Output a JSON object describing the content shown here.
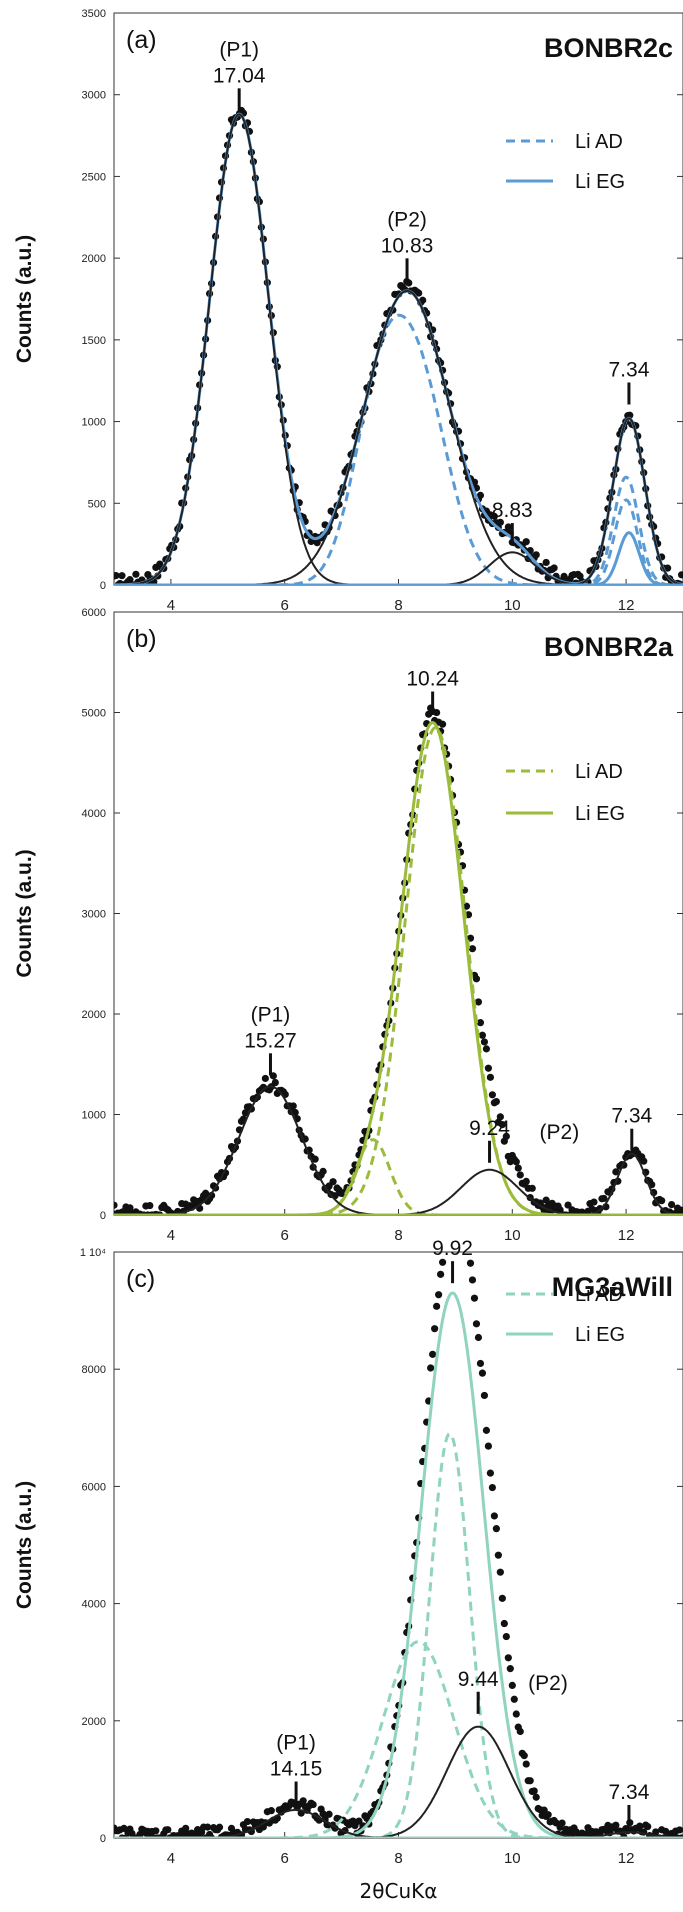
{
  "chart_data": [
    {
      "type": "scatter",
      "panel": "(a)",
      "sample": "BONBR2c",
      "ylabel": "Counts (a.u.)",
      "xlabel": "",
      "xlim": [
        3,
        13
      ],
      "xticks": [
        4,
        6,
        8,
        10,
        12
      ],
      "xtick_labels": [
        "4",
        "6",
        "8",
        "10",
        "12"
      ],
      "ylim": [
        0,
        3500
      ],
      "yticks": [
        0,
        500,
        1000,
        1500,
        2000,
        2500,
        3000,
        3500
      ],
      "ytick_labels": [
        "0",
        "500",
        "1000",
        "1500",
        "2000",
        "2500",
        "3000",
        "3500"
      ],
      "color": "#5b9bd5",
      "legend": {
        "position": "top-right",
        "entries": [
          {
            "label": "Li AD",
            "style": "dashed"
          },
          {
            "label": "Li EG",
            "style": "solid"
          }
        ]
      },
      "peaks": [
        {
          "x": 5.2,
          "y": 2880,
          "text": [
            "(P1)",
            "17.04"
          ]
        },
        {
          "x": 8.15,
          "y": 1840,
          "text": [
            "(P2)",
            "10.83"
          ]
        },
        {
          "x": 10.0,
          "y": 220,
          "text": [
            "8.83"
          ]
        },
        {
          "x": 12.05,
          "y": 1080,
          "text": [
            "7.34"
          ]
        }
      ],
      "series": [
        {
          "style": "dots",
          "peaks": [
            [
              5.2,
              2880,
              0.52
            ],
            [
              8.15,
              1800,
              0.75
            ],
            [
              10.0,
              200,
              0.4
            ],
            [
              12.05,
              1020,
              0.28
            ]
          ]
        },
        {
          "style": "solid",
          "peaks": [
            [
              5.2,
              2880,
              0.52
            ],
            [
              8.15,
              1800,
              0.75
            ],
            [
              10.0,
              200,
              0.4
            ],
            [
              12.05,
              1020,
              0.28
            ]
          ]
        },
        {
          "style": "dashed",
          "peaks": [
            [
              7.6,
              800,
              0.45
            ],
            [
              8.3,
              1290,
              0.55
            ]
          ]
        },
        {
          "style": "dashed",
          "peaks": [
            [
              12.0,
              660,
              0.22
            ]
          ]
        },
        {
          "style": "dashed",
          "peaks": [
            [
              12.0,
              520,
              0.2
            ]
          ]
        },
        {
          "style": "solid",
          "peaks": [
            [
              12.05,
              320,
              0.18
            ]
          ]
        },
        {
          "style": "dark",
          "peaks": [
            [
              5.2,
              2880,
              0.52
            ]
          ]
        },
        {
          "style": "dark",
          "peaks": [
            [
              8.15,
              1800,
              0.75
            ]
          ]
        },
        {
          "style": "dark",
          "peaks": [
            [
              10.0,
              200,
              0.4
            ]
          ]
        },
        {
          "style": "dark",
          "peaks": [
            [
              12.05,
              1020,
              0.28
            ]
          ]
        }
      ]
    },
    {
      "type": "scatter",
      "panel": "(b)",
      "sample": "BONBR2a",
      "ylabel": "Counts (a.u.)",
      "xlabel": "",
      "xlim": [
        3,
        13
      ],
      "xticks": [
        4,
        6,
        8,
        10,
        12
      ],
      "xtick_labels": [
        "4",
        "6",
        "8",
        "10",
        "12"
      ],
      "ylim": [
        0,
        6000
      ],
      "yticks": [
        0,
        1000,
        2000,
        3000,
        4000,
        5000,
        6000
      ],
      "ytick_labels": [
        "0",
        "1000",
        "2000",
        "3000",
        "4000",
        "5000",
        "6000"
      ],
      "color": "#9bbb3b",
      "legend": {
        "position": "top-right",
        "entries": [
          {
            "label": "Li AD",
            "style": "dashed"
          },
          {
            "label": "Li EG",
            "style": "solid"
          }
        ]
      },
      "peaks": [
        {
          "x": 5.75,
          "y": 1350,
          "text": [
            "(P1)",
            "15.27"
          ]
        },
        {
          "x": 8.6,
          "y": 4950,
          "text": [
            "10.24"
          ]
        },
        {
          "x": 9.6,
          "y": 480,
          "text": [
            "9.24"
          ]
        },
        {
          "x": 9.6,
          "y": 480,
          "text": [
            "(P2)"
          ]
        },
        {
          "x": 12.1,
          "y": 600,
          "text": [
            "7.34"
          ]
        }
      ],
      "series": [
        {
          "style": "dots",
          "peaks": [
            [
              5.75,
              1280,
              0.55
            ],
            [
              8.6,
              4900,
              0.55
            ],
            [
              7.5,
              250,
              0.3
            ],
            [
              9.6,
              450,
              0.5
            ],
            [
              12.1,
              610,
              0.25
            ]
          ]
        },
        {
          "style": "solid",
          "peaks": [
            [
              8.6,
              4900,
              0.55
            ],
            [
              7.5,
              250,
              0.3
            ]
          ]
        },
        {
          "style": "dashed",
          "peaks": [
            [
              8.65,
              4850,
              0.53
            ]
          ]
        },
        {
          "style": "dashed",
          "peaks": [
            [
              7.55,
              750,
              0.3
            ]
          ]
        },
        {
          "style": "dark",
          "peaks": [
            [
              5.75,
              1280,
              0.55
            ]
          ]
        },
        {
          "style": "dark",
          "peaks": [
            [
              9.6,
              450,
              0.5
            ]
          ]
        },
        {
          "style": "dark",
          "peaks": [
            [
              12.1,
              610,
              0.25
            ]
          ]
        }
      ]
    },
    {
      "type": "scatter",
      "panel": "(c)",
      "sample": "MG3aWill",
      "ylabel": "Counts (a.u.)",
      "xlabel": "2θCuKα",
      "xlim": [
        3,
        13
      ],
      "xticks": [
        4,
        6,
        8,
        10,
        12
      ],
      "xtick_labels": [
        "4",
        "6",
        "8",
        "10",
        "12"
      ],
      "ylim": [
        0,
        10000
      ],
      "yticks": [
        0,
        2000,
        4000,
        6000,
        8000,
        10000
      ],
      "ytick_labels": [
        "0",
        "2000",
        "4000",
        "6000",
        "8000",
        "1 10⁴"
      ],
      "color": "#8fd3c0",
      "legend": {
        "position": "top-right",
        "entries": [
          {
            "label": "Li AD",
            "style": "dashed"
          },
          {
            "label": "Li EG",
            "style": "solid"
          }
        ]
      },
      "peaks": [
        {
          "x": 6.2,
          "y": 520,
          "text": [
            "(P1)",
            "14.15"
          ]
        },
        {
          "x": 8.95,
          "y": 9400,
          "text": [
            "9.92"
          ]
        },
        {
          "x": 9.4,
          "y": 2050,
          "text": [
            "9.44"
          ]
        },
        {
          "x": 9.4,
          "y": 2050,
          "text": [
            "(P2)"
          ]
        },
        {
          "x": 12.05,
          "y": 120,
          "text": [
            "7.34"
          ]
        }
      ],
      "series": [
        {
          "style": "dots",
          "peaks": [
            [
              8.95,
              9300,
              0.55
            ],
            [
              9.4,
              1900,
              0.55
            ],
            [
              6.2,
              480,
              0.5
            ],
            [
              12.05,
              100,
              0.35
            ]
          ]
        },
        {
          "style": "solid",
          "peaks": [
            [
              8.95,
              9300,
              0.55
            ]
          ]
        },
        {
          "style": "dashed",
          "peaks": [
            [
              8.9,
              6900,
              0.35
            ]
          ]
        },
        {
          "style": "dashed",
          "peaks": [
            [
              8.35,
              3350,
              0.62
            ]
          ]
        },
        {
          "style": "dark",
          "peaks": [
            [
              9.4,
              1900,
              0.55
            ]
          ]
        },
        {
          "style": "dark",
          "peaks": [
            [
              6.2,
              480,
              0.5
            ]
          ]
        },
        {
          "style": "dark",
          "peaks": [
            [
              12.05,
              100,
              0.35
            ]
          ]
        }
      ]
    }
  ]
}
